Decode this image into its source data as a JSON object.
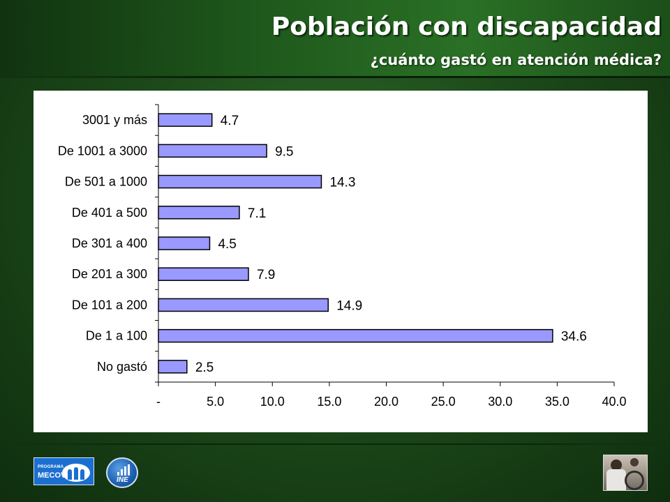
{
  "header": {
    "title": "Población con discapacidad",
    "subtitle": "¿cuánto gastó en atención médica?"
  },
  "footer": {
    "mecovi_logo_small": "PROGRAMA",
    "mecovi_logo_big": "MECOVI",
    "ine_logo_text": "INE"
  },
  "colors": {
    "bar_fill": "#9999ff",
    "bar_stroke": "#000000",
    "background_green": "#1d4a1a",
    "title_text": "#ffffff"
  },
  "chart_data": {
    "type": "bar",
    "orientation": "horizontal",
    "categories": [
      "3001 y más",
      "De 1001 a 3000",
      "De 501 a 1000",
      "De 401 a 500",
      "De 301 a 400",
      "De 201 a 300",
      "De 101 a 200",
      "De 1 a 100",
      "No gastó"
    ],
    "values": [
      4.7,
      9.5,
      14.3,
      7.1,
      4.5,
      7.9,
      14.9,
      34.6,
      2.5
    ],
    "value_labels": [
      "4.7",
      "9.5",
      "14.3",
      "7.1",
      "4.5",
      "7.9",
      "14.9",
      "34.6",
      "2.5"
    ],
    "xlim": [
      0,
      40
    ],
    "xticks": [
      0,
      5,
      10,
      15,
      20,
      25,
      30,
      35,
      40
    ],
    "xtick_labels": [
      "-",
      "5.0",
      "10.0",
      "15.0",
      "20.0",
      "25.0",
      "30.0",
      "35.0",
      "40.0"
    ],
    "grid": false,
    "legend": "none"
  }
}
